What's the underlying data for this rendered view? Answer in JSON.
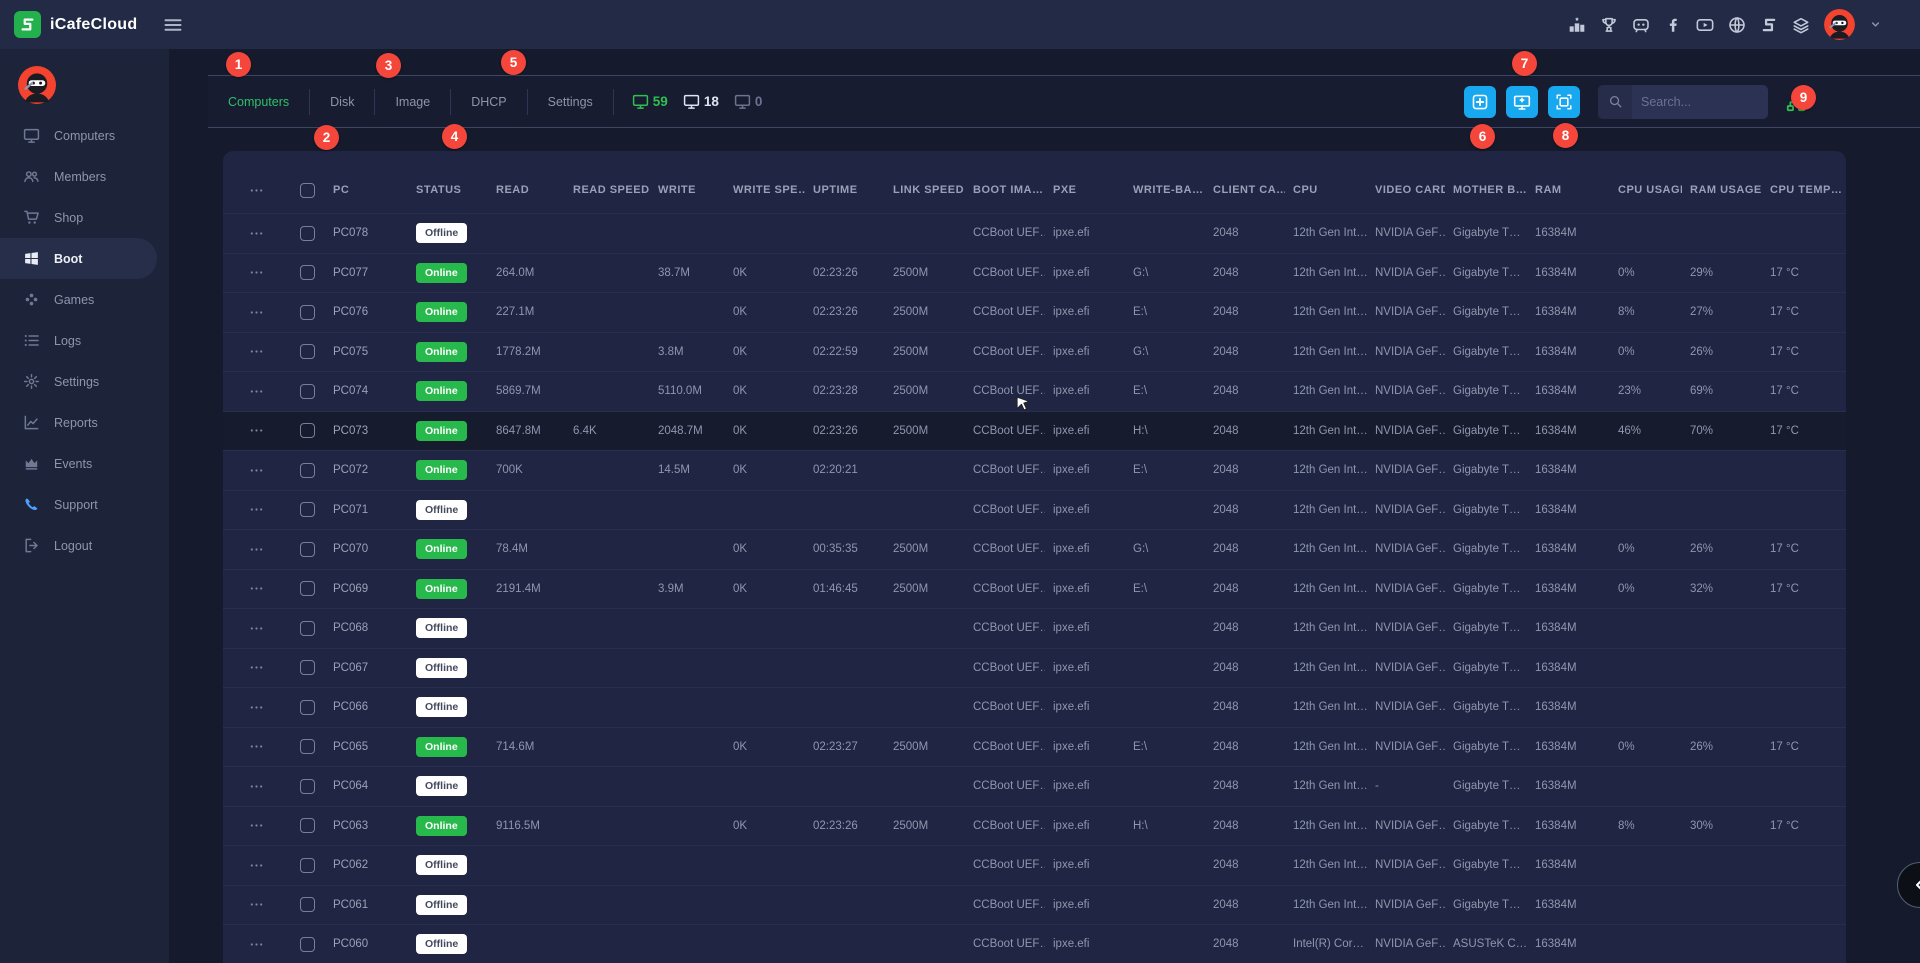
{
  "topbar": {
    "brand": "iCafeCloud",
    "menu_icon": "hamburger-icon",
    "right_icons": [
      "ranking-icon",
      "trophy-icon",
      "discord-icon",
      "facebook-icon",
      "youtube-icon",
      "globe-icon",
      "icafecloud-icon",
      "layers-icon"
    ],
    "avatar_icon": "ninja-avatar",
    "caret_icon": "chevron-down-icon"
  },
  "sidebar": {
    "avatar_icon": "ninja-avatar",
    "items": [
      {
        "label": "Computers",
        "icon": "computers-icon",
        "active": false
      },
      {
        "label": "Members",
        "icon": "members-icon",
        "active": false
      },
      {
        "label": "Shop",
        "icon": "shop-icon",
        "active": false
      },
      {
        "label": "Boot",
        "icon": "boot-icon",
        "active": true
      },
      {
        "label": "Games",
        "icon": "games-icon",
        "active": false
      },
      {
        "label": "Logs",
        "icon": "logs-icon",
        "active": false
      },
      {
        "label": "Settings",
        "icon": "settings-icon",
        "active": false
      },
      {
        "label": "Reports",
        "icon": "reports-icon",
        "active": false
      },
      {
        "label": "Events",
        "icon": "events-icon",
        "active": false
      },
      {
        "label": "Support",
        "icon": "support-icon",
        "active": false,
        "icon_color": "blue"
      },
      {
        "label": "Logout",
        "icon": "logout-icon",
        "active": false
      }
    ]
  },
  "tabs": {
    "items": [
      "Computers",
      "Disk",
      "Image",
      "DHCP",
      "Settings"
    ],
    "active": "Computers"
  },
  "status_counts": [
    {
      "value": "59",
      "kind": "online",
      "icon": "monitor-icon"
    },
    {
      "value": "18",
      "kind": "busy",
      "icon": "monitor-icon"
    },
    {
      "value": "0",
      "kind": "idle",
      "icon": "monitor-icon"
    }
  ],
  "toolbar": {
    "buttons": [
      {
        "name": "add-button",
        "icon": "plus-square-icon"
      },
      {
        "name": "add-computer-button",
        "icon": "monitor-plus-icon"
      },
      {
        "name": "screen-capture-button",
        "icon": "image-frame-icon"
      }
    ],
    "search_placeholder": "Search...",
    "network_icon": "network-icon"
  },
  "annotations": [
    "1",
    "2",
    "3",
    "4",
    "5",
    "6",
    "7",
    "8",
    "9"
  ],
  "colors": {
    "accent_green": "#2ec06a",
    "accent_blue": "#18a8f0",
    "annotation_red": "#f5463c",
    "online_badge": "#28b94c",
    "offline_badge": "#ffffff"
  },
  "table": {
    "headers": [
      "PC",
      "STATUS",
      "READ",
      "READ SPEED",
      "WRITE",
      "WRITE SPE…",
      "UPTIME",
      "LINK SPEED",
      "BOOT IMA…",
      "PXE",
      "WRITE-BA…",
      "CLIENT CA…",
      "CPU",
      "VIDEO CARD",
      "MOTHER B…",
      "RAM",
      "CPU USAGE",
      "RAM USAGE",
      "CPU TEMP…"
    ],
    "rows": [
      {
        "pc": "PC078",
        "status": "Offline",
        "read": "",
        "read_speed": "",
        "write": "",
        "write_speed": "",
        "uptime": "",
        "link_speed": "",
        "boot_image": "CCBoot UEF…",
        "pxe": "ipxe.efi",
        "write_back": "",
        "client_cache": "2048",
        "cpu": "12th Gen Int…",
        "video_card": "NVIDIA GeF…",
        "mother_board": "Gigabyte T…",
        "ram": "16384M",
        "cpu_usage": "",
        "ram_usage": "",
        "cpu_temp": "",
        "highlighted": false
      },
      {
        "pc": "PC077",
        "status": "Online",
        "read": "264.0M",
        "read_speed": "",
        "write": "38.7M",
        "write_speed": "0K",
        "uptime": "02:23:26",
        "link_speed": "2500M",
        "boot_image": "CCBoot UEF…",
        "pxe": "ipxe.efi",
        "write_back": "G:\\",
        "client_cache": "2048",
        "cpu": "12th Gen Int…",
        "video_card": "NVIDIA GeF…",
        "mother_board": "Gigabyte T…",
        "ram": "16384M",
        "cpu_usage": "0%",
        "ram_usage": "29%",
        "cpu_temp": "17 °C",
        "highlighted": false
      },
      {
        "pc": "PC076",
        "status": "Online",
        "read": "227.1M",
        "read_speed": "",
        "write": "",
        "write_speed": "0K",
        "uptime": "02:23:26",
        "link_speed": "2500M",
        "boot_image": "CCBoot UEF…",
        "pxe": "ipxe.efi",
        "write_back": "E:\\",
        "client_cache": "2048",
        "cpu": "12th Gen Int…",
        "video_card": "NVIDIA GeF…",
        "mother_board": "Gigabyte T…",
        "ram": "16384M",
        "cpu_usage": "8%",
        "ram_usage": "27%",
        "cpu_temp": "17 °C",
        "highlighted": false
      },
      {
        "pc": "PC075",
        "status": "Online",
        "read": "1778.2M",
        "read_speed": "",
        "write": "3.8M",
        "write_speed": "0K",
        "uptime": "02:22:59",
        "link_speed": "2500M",
        "boot_image": "CCBoot UEF…",
        "pxe": "ipxe.efi",
        "write_back": "G:\\",
        "client_cache": "2048",
        "cpu": "12th Gen Int…",
        "video_card": "NVIDIA GeF…",
        "mother_board": "Gigabyte T…",
        "ram": "16384M",
        "cpu_usage": "0%",
        "ram_usage": "26%",
        "cpu_temp": "17 °C",
        "highlighted": false
      },
      {
        "pc": "PC074",
        "status": "Online",
        "read": "5869.7M",
        "read_speed": "",
        "write": "5110.0M",
        "write_speed": "0K",
        "uptime": "02:23:28",
        "link_speed": "2500M",
        "boot_image": "CCBoot UEF…",
        "pxe": "ipxe.efi",
        "write_back": "E:\\",
        "client_cache": "2048",
        "cpu": "12th Gen Int…",
        "video_card": "NVIDIA GeF…",
        "mother_board": "Gigabyte T…",
        "ram": "16384M",
        "cpu_usage": "23%",
        "ram_usage": "69%",
        "cpu_temp": "17 °C",
        "highlighted": false
      },
      {
        "pc": "PC073",
        "status": "Online",
        "read": "8647.8M",
        "read_speed": "6.4K",
        "write": "2048.7M",
        "write_speed": "0K",
        "uptime": "02:23:26",
        "link_speed": "2500M",
        "boot_image": "CCBoot UEF…",
        "pxe": "ipxe.efi",
        "write_back": "H:\\",
        "client_cache": "2048",
        "cpu": "12th Gen Int…",
        "video_card": "NVIDIA GeF…",
        "mother_board": "Gigabyte T…",
        "ram": "16384M",
        "cpu_usage": "46%",
        "ram_usage": "70%",
        "cpu_temp": "17 °C",
        "highlighted": true
      },
      {
        "pc": "PC072",
        "status": "Online",
        "read": "700K",
        "read_speed": "",
        "write": "14.5M",
        "write_speed": "0K",
        "uptime": "02:20:21",
        "link_speed": "",
        "boot_image": "CCBoot UEF…",
        "pxe": "ipxe.efi",
        "write_back": "E:\\",
        "client_cache": "2048",
        "cpu": "12th Gen Int…",
        "video_card": "NVIDIA GeF…",
        "mother_board": "Gigabyte T…",
        "ram": "16384M",
        "cpu_usage": "",
        "ram_usage": "",
        "cpu_temp": "",
        "highlighted": false
      },
      {
        "pc": "PC071",
        "status": "Offline",
        "read": "",
        "read_speed": "",
        "write": "",
        "write_speed": "",
        "uptime": "",
        "link_speed": "",
        "boot_image": "CCBoot UEF…",
        "pxe": "ipxe.efi",
        "write_back": "",
        "client_cache": "2048",
        "cpu": "12th Gen Int…",
        "video_card": "NVIDIA GeF…",
        "mother_board": "Gigabyte T…",
        "ram": "16384M",
        "cpu_usage": "",
        "ram_usage": "",
        "cpu_temp": "",
        "highlighted": false
      },
      {
        "pc": "PC070",
        "status": "Online",
        "read": "78.4M",
        "read_speed": "",
        "write": "",
        "write_speed": "0K",
        "uptime": "00:35:35",
        "link_speed": "2500M",
        "boot_image": "CCBoot UEF…",
        "pxe": "ipxe.efi",
        "write_back": "G:\\",
        "client_cache": "2048",
        "cpu": "12th Gen Int…",
        "video_card": "NVIDIA GeF…",
        "mother_board": "Gigabyte T…",
        "ram": "16384M",
        "cpu_usage": "0%",
        "ram_usage": "26%",
        "cpu_temp": "17 °C",
        "highlighted": false
      },
      {
        "pc": "PC069",
        "status": "Online",
        "read": "2191.4M",
        "read_speed": "",
        "write": "3.9M",
        "write_speed": "0K",
        "uptime": "01:46:45",
        "link_speed": "2500M",
        "boot_image": "CCBoot UEF…",
        "pxe": "ipxe.efi",
        "write_back": "E:\\",
        "client_cache": "2048",
        "cpu": "12th Gen Int…",
        "video_card": "NVIDIA GeF…",
        "mother_board": "Gigabyte T…",
        "ram": "16384M",
        "cpu_usage": "0%",
        "ram_usage": "32%",
        "cpu_temp": "17 °C",
        "highlighted": false
      },
      {
        "pc": "PC068",
        "status": "Offline",
        "read": "",
        "read_speed": "",
        "write": "",
        "write_speed": "",
        "uptime": "",
        "link_speed": "",
        "boot_image": "CCBoot UEF…",
        "pxe": "ipxe.efi",
        "write_back": "",
        "client_cache": "2048",
        "cpu": "12th Gen Int…",
        "video_card": "NVIDIA GeF…",
        "mother_board": "Gigabyte T…",
        "ram": "16384M",
        "cpu_usage": "",
        "ram_usage": "",
        "cpu_temp": "",
        "highlighted": false
      },
      {
        "pc": "PC067",
        "status": "Offline",
        "read": "",
        "read_speed": "",
        "write": "",
        "write_speed": "",
        "uptime": "",
        "link_speed": "",
        "boot_image": "CCBoot UEF…",
        "pxe": "ipxe.efi",
        "write_back": "",
        "client_cache": "2048",
        "cpu": "12th Gen Int…",
        "video_card": "NVIDIA GeF…",
        "mother_board": "Gigabyte T…",
        "ram": "16384M",
        "cpu_usage": "",
        "ram_usage": "",
        "cpu_temp": "",
        "highlighted": false
      },
      {
        "pc": "PC066",
        "status": "Offline",
        "read": "",
        "read_speed": "",
        "write": "",
        "write_speed": "",
        "uptime": "",
        "link_speed": "",
        "boot_image": "CCBoot UEF…",
        "pxe": "ipxe.efi",
        "write_back": "",
        "client_cache": "2048",
        "cpu": "12th Gen Int…",
        "video_card": "NVIDIA GeF…",
        "mother_board": "Gigabyte T…",
        "ram": "16384M",
        "cpu_usage": "",
        "ram_usage": "",
        "cpu_temp": "",
        "highlighted": false
      },
      {
        "pc": "PC065",
        "status": "Online",
        "read": "714.6M",
        "read_speed": "",
        "write": "",
        "write_speed": "0K",
        "uptime": "02:23:27",
        "link_speed": "2500M",
        "boot_image": "CCBoot UEF…",
        "pxe": "ipxe.efi",
        "write_back": "E:\\",
        "client_cache": "2048",
        "cpu": "12th Gen Int…",
        "video_card": "NVIDIA GeF…",
        "mother_board": "Gigabyte T…",
        "ram": "16384M",
        "cpu_usage": "0%",
        "ram_usage": "26%",
        "cpu_temp": "17 °C",
        "highlighted": false
      },
      {
        "pc": "PC064",
        "status": "Offline",
        "read": "",
        "read_speed": "",
        "write": "",
        "write_speed": "",
        "uptime": "",
        "link_speed": "",
        "boot_image": "CCBoot UEF…",
        "pxe": "ipxe.efi",
        "write_back": "",
        "client_cache": "2048",
        "cpu": "12th Gen Int…",
        "video_card": "-",
        "mother_board": "Gigabyte T…",
        "ram": "16384M",
        "cpu_usage": "",
        "ram_usage": "",
        "cpu_temp": "",
        "highlighted": false
      },
      {
        "pc": "PC063",
        "status": "Online",
        "read": "9116.5M",
        "read_speed": "",
        "write": "",
        "write_speed": "0K",
        "uptime": "02:23:26",
        "link_speed": "2500M",
        "boot_image": "CCBoot UEF…",
        "pxe": "ipxe.efi",
        "write_back": "H:\\",
        "client_cache": "2048",
        "cpu": "12th Gen Int…",
        "video_card": "NVIDIA GeF…",
        "mother_board": "Gigabyte T…",
        "ram": "16384M",
        "cpu_usage": "8%",
        "ram_usage": "30%",
        "cpu_temp": "17 °C",
        "highlighted": false
      },
      {
        "pc": "PC062",
        "status": "Offline",
        "read": "",
        "read_speed": "",
        "write": "",
        "write_speed": "",
        "uptime": "",
        "link_speed": "",
        "boot_image": "CCBoot UEF…",
        "pxe": "ipxe.efi",
        "write_back": "",
        "client_cache": "2048",
        "cpu": "12th Gen Int…",
        "video_card": "NVIDIA GeF…",
        "mother_board": "Gigabyte T…",
        "ram": "16384M",
        "cpu_usage": "",
        "ram_usage": "",
        "cpu_temp": "",
        "highlighted": false
      },
      {
        "pc": "PC061",
        "status": "Offline",
        "read": "",
        "read_speed": "",
        "write": "",
        "write_speed": "",
        "uptime": "",
        "link_speed": "",
        "boot_image": "CCBoot UEF…",
        "pxe": "ipxe.efi",
        "write_back": "",
        "client_cache": "2048",
        "cpu": "12th Gen Int…",
        "video_card": "NVIDIA GeF…",
        "mother_board": "Gigabyte T…",
        "ram": "16384M",
        "cpu_usage": "",
        "ram_usage": "",
        "cpu_temp": "",
        "highlighted": false
      },
      {
        "pc": "PC060",
        "status": "Offline",
        "read": "",
        "read_speed": "",
        "write": "",
        "write_speed": "",
        "uptime": "",
        "link_speed": "",
        "boot_image": "CCBoot UEF…",
        "pxe": "ipxe.efi",
        "write_back": "",
        "client_cache": "2048",
        "cpu": "Intel(R) Cor…",
        "video_card": "NVIDIA GeF…",
        "mother_board": "ASUSTeK C…",
        "ram": "16384M",
        "cpu_usage": "",
        "ram_usage": "",
        "cpu_temp": "",
        "highlighted": false
      }
    ]
  }
}
